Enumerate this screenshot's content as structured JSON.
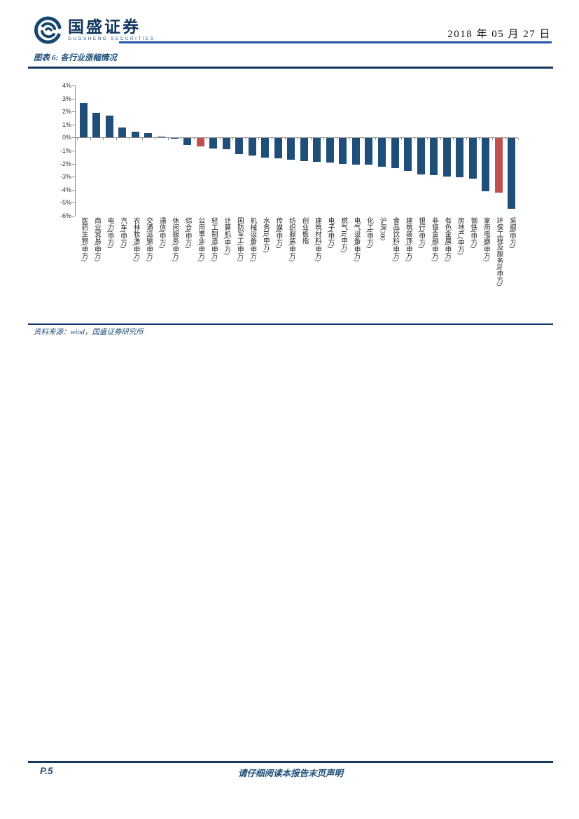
{
  "header": {
    "logo_text": "国盛证券",
    "logo_subtext": "GUOSHENG SECURITIES",
    "date": "2018 年 05 月 27 日"
  },
  "figure": {
    "caption": "图表 6: 各行业涨幅情况",
    "source": "资料来源：wind，国盛证券研究所"
  },
  "chart_data": {
    "type": "bar",
    "title": "各行业涨幅情况",
    "xlabel": "",
    "ylabel": "",
    "ylim": [
      -6,
      4
    ],
    "grid": false,
    "legend": "none",
    "ytick_labels": [
      "4%",
      "3%",
      "2%",
      "1%",
      "0%",
      "-1%",
      "-2%",
      "-3%",
      "-4%",
      "-5%",
      "-6%"
    ],
    "bar_color": "#1F4E79",
    "highlight_color": "#C0504D",
    "highlight_indices": [
      9,
      32
    ],
    "categories": [
      "医药生物(申万)",
      "商业贸易(申万)",
      "电力(申万)",
      "汽车(申万)",
      "农林牧渔(申万)",
      "交通运输(申万)",
      "通信(申万)",
      "休闲服务(申万)",
      "综合(申万)",
      "公用事业(申万)",
      "轻工制造(申万)",
      "计算机(申万)",
      "国防军工(申万)",
      "机械设备(申万)",
      "水务II(申万)",
      "传媒(申万)",
      "纺织服装(申万)",
      "创业板指",
      "建筑材料(申万)",
      "电子(申万)",
      "燃气II(申万)",
      "电气设备(申万)",
      "化工(申万)",
      "沪深300",
      "食品饮料(申万)",
      "建筑装饰(申万)",
      "银行(申万)",
      "非银金融(申万)",
      "有色金属(申万)",
      "房地产(申万)",
      "钢铁(申万)",
      "家用电器(申万)",
      "环保工程及服务II(申万)",
      "采掘(申万)"
    ],
    "values": [
      2.65,
      1.9,
      1.7,
      0.8,
      0.45,
      0.35,
      0.05,
      -0.05,
      -0.5,
      -0.65,
      -0.8,
      -0.85,
      -1.2,
      -1.3,
      -1.5,
      -1.55,
      -1.65,
      -1.75,
      -1.8,
      -1.85,
      -1.95,
      -2.0,
      -2.05,
      -2.2,
      -2.3,
      -2.5,
      -2.8,
      -2.85,
      -2.95,
      -3.0,
      -3.1,
      -4.05,
      -4.15,
      -5.4
    ]
  },
  "footer": {
    "page": "P.5",
    "disclaimer": "请仔细阅读本报告末页声明"
  },
  "colors": {
    "accent_navy": "#17375E",
    "header_line_blue": "#2457A5",
    "bar_blue": "#1F4E79",
    "bar_red": "#C0504D",
    "text_blue": "#1F4E79"
  }
}
